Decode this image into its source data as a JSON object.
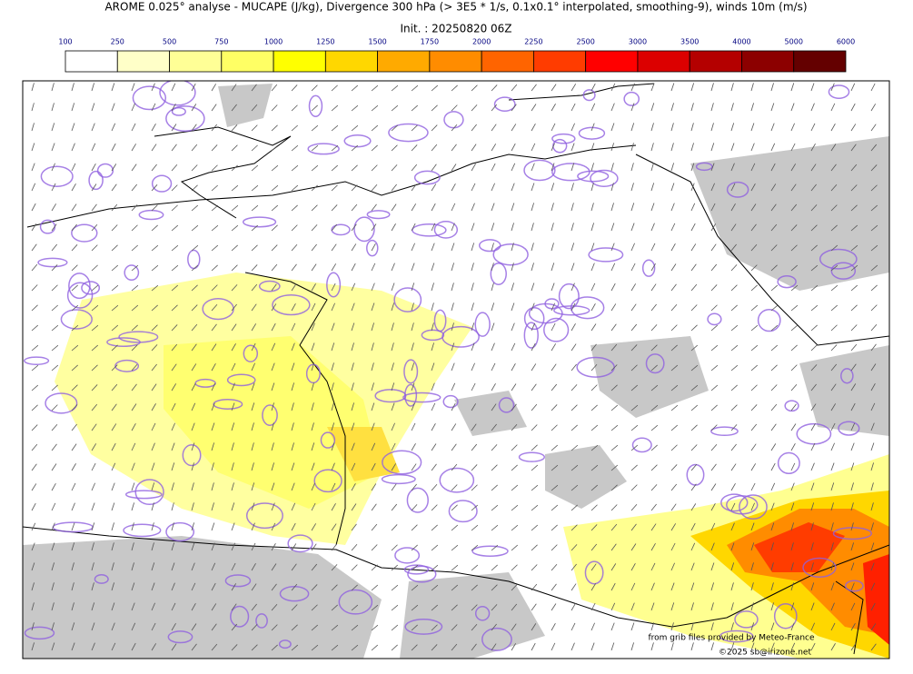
{
  "header": {
    "title": "AROME 0.025° analyse - MUCAPE (J/kg), Divergence 300 hPa (> 3E5 * 1/s, 0.1x0.1° interpolated, smoothing-9), winds 10m (m/s)",
    "init": "Init. : 20250820 06Z"
  },
  "colorbar": {
    "levels": [
      100,
      250,
      500,
      750,
      1000,
      1250,
      1500,
      1750,
      2000,
      2250,
      2500,
      3000,
      3500,
      4000,
      5000,
      6000
    ],
    "colors": [
      "#ffffff",
      "#ffffc8",
      "#ffff96",
      "#ffff64",
      "#ffff00",
      "#ffd700",
      "#ffaa00",
      "#ff8c00",
      "#ff6400",
      "#ff3c00",
      "#ff0000",
      "#dc0000",
      "#b40000",
      "#8c0000",
      "#640000"
    ]
  },
  "credits": {
    "source": "from grib files provided by Meteo-France",
    "copyright": "©2025 sb@irizone.net"
  }
}
